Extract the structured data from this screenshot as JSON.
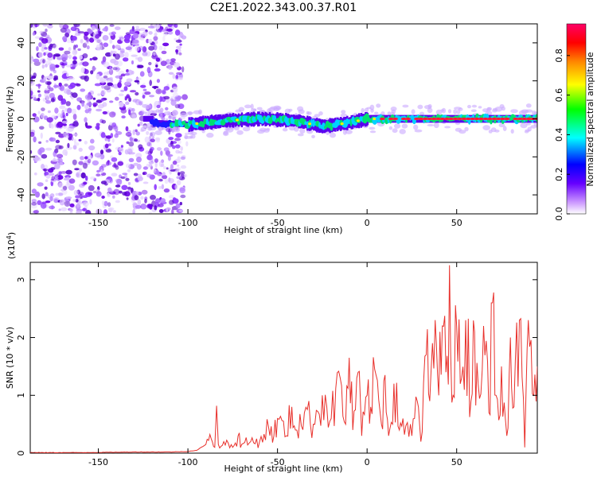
{
  "title": "C2E1.2022.343.00.37.R01",
  "colors": {
    "snr_line": "#e8302b",
    "colorbar": [
      "#ffffff",
      "#cc99ff",
      "#6600ff",
      "#0000ff",
      "#00ffff",
      "#00ff00",
      "#ffff00",
      "#ff8800",
      "#ff0000",
      "#ff0066"
    ]
  },
  "chart_data": [
    {
      "type": "heatmap",
      "xlabel": "Height of straight line (km)",
      "ylabel": "Frequency (Hz)",
      "xlim": [
        -188,
        95
      ],
      "ylim": [
        -50,
        50
      ],
      "xticks": [
        -150,
        -100,
        -50,
        0,
        50
      ],
      "yticks": [
        -40,
        -20,
        0,
        20,
        40
      ],
      "grid": false,
      "noise_region_x": [
        -188,
        -102
      ],
      "signal_band_x": [
        -125,
        95
      ],
      "band_center_hz": [
        {
          "x": -120,
          "y": -2
        },
        {
          "x": -100,
          "y": -3
        },
        {
          "x": -80,
          "y": -1
        },
        {
          "x": -60,
          "y": 0
        },
        {
          "x": -40,
          "y": -1
        },
        {
          "x": -25,
          "y": -4
        },
        {
          "x": -10,
          "y": -2
        },
        {
          "x": 0,
          "y": 0
        },
        {
          "x": 20,
          "y": 0
        },
        {
          "x": 50,
          "y": 0
        },
        {
          "x": 95,
          "y": 0
        }
      ],
      "colorbar": {
        "label": "Normalized spectral amplitude",
        "range": [
          0,
          0.96
        ],
        "ticks": [
          "0.0",
          "0.2",
          "0.4",
          "0.6",
          "0.8"
        ]
      }
    },
    {
      "type": "line",
      "xlabel": "Height of straight line (km)",
      "ylabel": "SNR (10 * v/v)",
      "y_multiplier": "(x10",
      "y_multiplier_exp": "4",
      "y_multiplier_close": ")",
      "xlim": [
        -188,
        95
      ],
      "ylim": [
        0,
        3.3
      ],
      "xticks": [
        -150,
        -100,
        -50,
        0,
        50
      ],
      "yticks": [
        0,
        1,
        2,
        3
      ],
      "grid": false,
      "series": [
        {
          "x": [
            -188,
            -160,
            -130,
            -110,
            -100,
            -95,
            -90,
            -87,
            -85,
            -84,
            -83,
            -80,
            -75,
            -72,
            -70,
            -65,
            -60,
            -55,
            -52,
            -50,
            -45,
            -42,
            -40,
            -35,
            -30,
            -25,
            -20,
            -15,
            -12,
            -10,
            -8,
            -5,
            -3,
            0,
            2,
            5,
            8,
            10,
            12,
            15,
            18,
            20,
            25,
            28,
            30,
            33,
            35,
            38,
            40,
            42,
            44,
            46,
            48,
            50,
            52,
            55,
            58,
            60,
            62,
            65,
            68,
            70,
            72,
            75,
            78,
            80,
            82,
            85,
            88,
            90,
            93,
            95
          ],
          "y": [
            0.01,
            0.01,
            0.02,
            0.02,
            0.03,
            0.05,
            0.15,
            0.25,
            0.1,
            0.82,
            0.15,
            0.2,
            0.1,
            0.3,
            0.15,
            0.2,
            0.2,
            0.45,
            0.3,
            0.6,
            0.3,
            0.8,
            0.4,
            0.7,
            0.5,
            1.0,
            0.6,
            1.3,
            0.5,
            1.65,
            0.4,
            1.4,
            0.3,
            1.0,
            0.8,
            1.35,
            0.5,
            1.35,
            0.3,
            1.2,
            0.4,
            0.6,
            0.3,
            0.9,
            0.2,
            1.7,
            0.9,
            2.3,
            1.0,
            2.2,
            1.4,
            3.25,
            1.0,
            2.2,
            1.2,
            2.3,
            0.9,
            2.1,
            1.2,
            2.2,
            0.7,
            2.6,
            1.0,
            1.5,
            0.3,
            2.0,
            0.8,
            2.3,
            0.1,
            2.3,
            1.0,
            1.5
          ]
        }
      ]
    }
  ]
}
